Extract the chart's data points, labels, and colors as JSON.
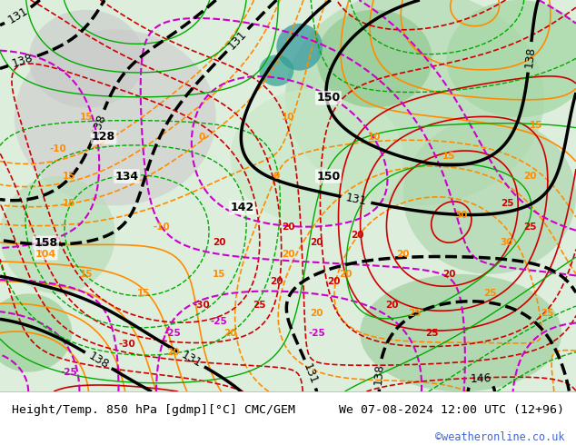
{
  "title_left": "Height/Temp. 850 hPa [gdmp][°C] CMC/GEM",
  "title_right": "We 07-08-2024 12:00 UTC (12+96)",
  "credit": "©weatheronline.co.uk",
  "bg_color": "#ffffff",
  "map_bg_color": "#e8f5e8",
  "fig_width": 6.34,
  "fig_height": 4.9,
  "dpi": 100,
  "title_fontsize": 9.5,
  "credit_fontsize": 8.5,
  "credit_color": "#4466cc"
}
